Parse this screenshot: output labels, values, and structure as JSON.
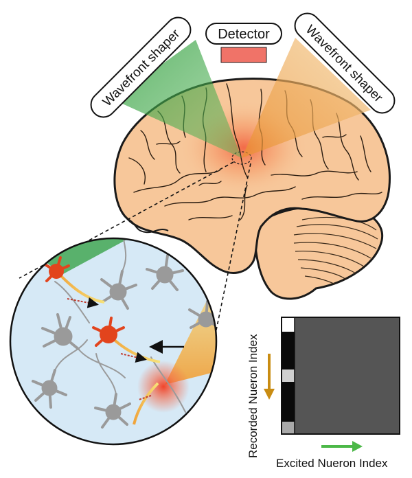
{
  "labels": {
    "detector": "Detector",
    "shaper_left": "Wavefront shaper",
    "shaper_right": "Wavefront shaper",
    "y_axis": "Recorded Nueron Index",
    "x_axis": "Excited Nueron Index"
  },
  "colors": {
    "brain_fill": "#f7c79a",
    "brain_outline": "#1a1a1a",
    "detector": "#f07368",
    "green_beam": "#3fae4a",
    "orange_beam": "#f2b15a",
    "zoom_fill": "#d6e9f6",
    "neuron_gray": "#9a9a9a",
    "neuron_active": "#e2441d",
    "matrix_bg": "#555555",
    "y_arrow": "#c98c12",
    "x_arrow": "#4cb848"
  },
  "icons": [
    "brain-icon",
    "neuron-icon",
    "arrow-icon"
  ]
}
